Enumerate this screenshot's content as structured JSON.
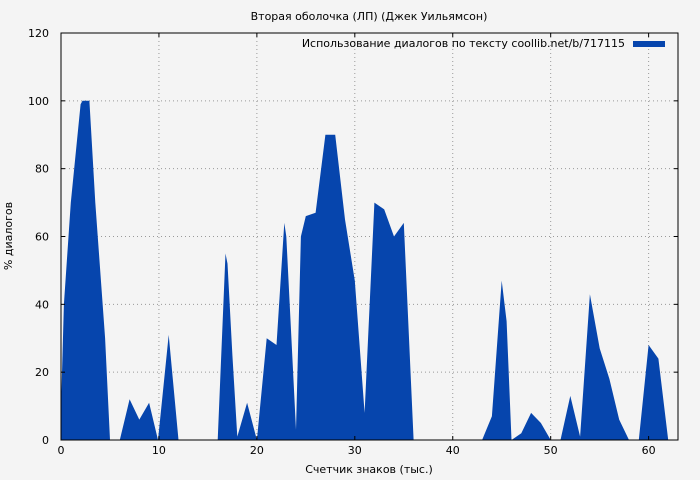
{
  "chart_data": {
    "type": "area",
    "title": "Вторая оболочка (ЛП) (Джек Уильямсон)",
    "xlabel": "Счетчик знаков (тыс.)",
    "ylabel": "% диалогов",
    "xlim": [
      0,
      63
    ],
    "ylim": [
      0,
      120
    ],
    "x_ticks": [
      0,
      10,
      20,
      30,
      40,
      50,
      60
    ],
    "y_ticks": [
      0,
      20,
      40,
      60,
      80,
      100,
      120
    ],
    "grid": true,
    "legend_position": "top-right",
    "series": [
      {
        "name": "Использование диалогов по тексту coollib.net/b/717115",
        "color": "#0645ad",
        "x": [
          0,
          0.3,
          1,
          2,
          2.2,
          2.9,
          3.5,
          4.5,
          5,
          6,
          7,
          8,
          9,
          9.9,
          11,
          12,
          16,
          16.8,
          17,
          17.5,
          18,
          19,
          20,
          21,
          22,
          22.8,
          23,
          24,
          24.5,
          25,
          26,
          27,
          28,
          29,
          30,
          31,
          32,
          33,
          34,
          35,
          36,
          37,
          43,
          44,
          45,
          45.5,
          46,
          47,
          48,
          49,
          50,
          51,
          52,
          53,
          54,
          55,
          56,
          57,
          58,
          59,
          60,
          61,
          62,
          63
        ],
        "y": [
          9,
          40,
          70,
          99,
          100,
          100,
          70,
          30,
          0,
          0,
          12,
          6,
          11,
          0,
          31,
          0,
          0,
          55,
          52,
          25,
          1,
          11,
          0,
          30,
          28,
          64,
          60,
          3,
          60,
          66,
          67,
          90,
          90,
          65,
          47,
          8,
          70,
          68,
          60,
          64,
          0,
          0,
          0,
          7,
          47,
          35,
          0,
          2,
          8,
          5,
          0,
          0,
          13,
          1,
          43,
          27,
          18,
          6,
          0,
          0,
          28,
          24,
          0,
          0
        ]
      }
    ]
  }
}
